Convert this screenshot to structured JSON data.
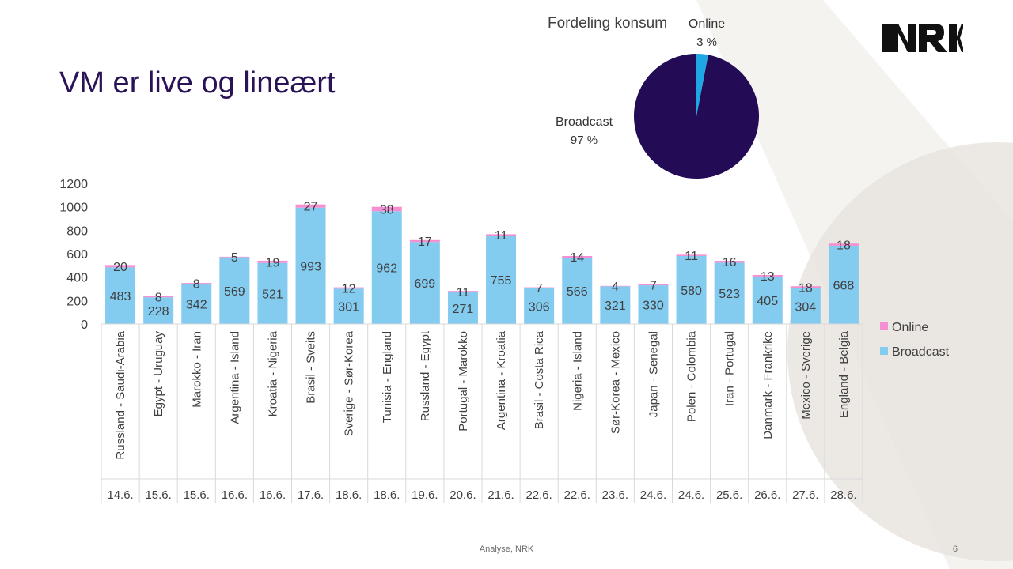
{
  "slide": {
    "title": "VM er live og lineært",
    "footer": "Analyse, NRK",
    "page_number": "6",
    "logo_text": "NRK"
  },
  "colors": {
    "title": "#2a1257",
    "broadcast": "#83ccf0",
    "online": "#f58fd2",
    "pie_broadcast": "#230b55",
    "pie_online": "#1ea6e5"
  },
  "chart_data": [
    {
      "type": "bar",
      "stacked": true,
      "categories": [
        "Russland - Saudi-Arabia",
        "Egypt - Uruguay",
        "Marokko - Iran",
        "Argentina - Island",
        "Kroatia - Nigeria",
        "Brasil - Sveits",
        "Sverige - Sør-Korea",
        "Tunisia - England",
        "Russland - Egypt",
        "Portugal - Marokko",
        "Argentina - Kroatia",
        "Brasil - Costa Rica",
        "Nigeria - Island",
        "Sør-Korea - Mexico",
        "Japan - Senegal",
        "Polen - Colombia",
        "Iran - Portugal",
        "Danmark - Frankrike",
        "Mexico - Sverige",
        "England - Belgia"
      ],
      "dates": [
        "14.6.",
        "15.6.",
        "15.6.",
        "16.6.",
        "16.6.",
        "17.6.",
        "18.6.",
        "18.6.",
        "19.6.",
        "20.6.",
        "21.6.",
        "22.6.",
        "22.6.",
        "23.6.",
        "24.6.",
        "24.6.",
        "25.6.",
        "26.6.",
        "27.6.",
        "28.6."
      ],
      "series": [
        {
          "name": "Broadcast",
          "values": [
            483,
            228,
            342,
            569,
            521,
            993,
            301,
            962,
            699,
            271,
            755,
            306,
            566,
            321,
            330,
            580,
            523,
            405,
            304,
            668
          ]
        },
        {
          "name": "Online",
          "values": [
            20,
            8,
            8,
            5,
            19,
            27,
            12,
            38,
            17,
            11,
            11,
            7,
            14,
            4,
            7,
            11,
            16,
            13,
            18,
            18
          ]
        }
      ],
      "y_ticks": [
        "0",
        "200",
        "400",
        "600",
        "800",
        "1000",
        "1200"
      ],
      "ylim": [
        0,
        1200
      ],
      "legend": [
        "Online",
        "Broadcast"
      ],
      "legend_position": "right",
      "grid": false
    },
    {
      "type": "pie",
      "title": "Fordeling konsum",
      "slices": [
        {
          "name": "Online",
          "value": 3,
          "label": "3 %"
        },
        {
          "name": "Broadcast",
          "value": 97,
          "label": "97 %"
        }
      ]
    }
  ]
}
